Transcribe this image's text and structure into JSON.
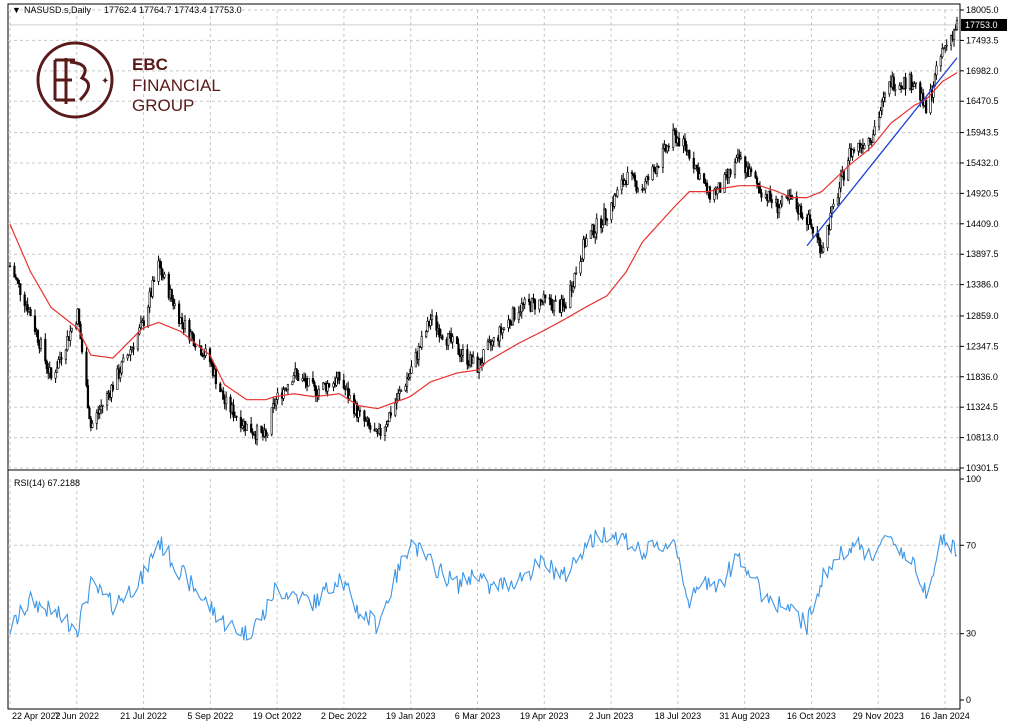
{
  "header": {
    "symbol": "NASUSD.s,Daily",
    "ohlc": "17762.4 17764.7 17743.4 17753.0"
  },
  "logo": {
    "line1": "EBC",
    "line2": "FINANCIAL",
    "line3": "GROUP"
  },
  "price_axis": {
    "ticks": [
      "18005.0",
      "17493.5",
      "16982.0",
      "16470.5",
      "15943.5",
      "15432.0",
      "14920.5",
      "14409.0",
      "13897.5",
      "13386.0",
      "12859.0",
      "12347.5",
      "11836.0",
      "11324.5",
      "10813.0",
      "10301.5"
    ],
    "current_price_label": "17753.0"
  },
  "rsi_panel": {
    "label": "RSI(14) 67.2188",
    "ticks": [
      "100",
      "70",
      "30",
      "0"
    ]
  },
  "x_axis": {
    "ticks": [
      "22 Apr 2022",
      "7 Jun 2022",
      "21 Jul 2022",
      "5 Sep 2022",
      "19 Oct 2022",
      "2 Dec 2022",
      "19 Jan 2023",
      "6 Mar 2023",
      "19 Apr 2023",
      "2 Jun 2023",
      "18 Jul 2023",
      "31 Aug 2023",
      "16 Oct 2023",
      "29 Nov 2023",
      "16 Jan 2024"
    ]
  },
  "colors": {
    "candles": "#000000",
    "moving_average": "#e8322e",
    "trendline": "#1f3fd6",
    "rsi_line": "#3c96e6",
    "grid": "#c8c8c8",
    "logo": "#5a1a1a"
  },
  "chart_data": [
    {
      "type": "line",
      "panel": "price",
      "x_range": [
        "22 Apr 2022",
        "26 Jan 2024"
      ],
      "ylim": [
        10301.5,
        18005.0
      ],
      "grid": true,
      "x": [
        "2022-04-22",
        "2022-05-06",
        "2022-05-20",
        "2022-06-07",
        "2022-06-16",
        "2022-07-01",
        "2022-07-21",
        "2022-08-01",
        "2022-08-16",
        "2022-09-05",
        "2022-09-15",
        "2022-09-30",
        "2022-10-13",
        "2022-10-19",
        "2022-11-01",
        "2022-11-15",
        "2022-12-02",
        "2022-12-15",
        "2022-12-28",
        "2023-01-19",
        "2023-02-02",
        "2023-02-20",
        "2023-03-06",
        "2023-03-13",
        "2023-04-03",
        "2023-04-19",
        "2023-05-04",
        "2023-05-18",
        "2023-06-02",
        "2023-06-15",
        "2023-06-26",
        "2023-07-18",
        "2023-07-28",
        "2023-08-10",
        "2023-08-18",
        "2023-08-31",
        "2023-09-14",
        "2023-09-26",
        "2023-10-05",
        "2023-10-16",
        "2023-10-26",
        "2023-11-14",
        "2023-11-29",
        "2023-12-12",
        "2023-12-28",
        "2024-01-05",
        "2024-01-16",
        "2024-01-26"
      ],
      "series": [
        {
          "kind": "candlestick_close_approx",
          "values": [
            13700,
            12900,
            11800,
            12900,
            11000,
            11700,
            12700,
            13700,
            12800,
            12100,
            11400,
            11000,
            10800,
            11400,
            11900,
            11600,
            11800,
            11200,
            10800,
            11900,
            12800,
            12300,
            12000,
            12300,
            13000,
            13100,
            13000,
            14100,
            14600,
            15200,
            15000,
            15900,
            15600,
            14900,
            15000,
            15500,
            15000,
            14700,
            14800,
            14500,
            14000,
            15600,
            15900,
            16800,
            16800,
            16300,
            17300,
            17753
          ]
        },
        {
          "kind": "moving_average",
          "values": [
            14400,
            13600,
            13000,
            12650,
            12200,
            12150,
            12650,
            12750,
            12600,
            12200,
            11700,
            11450,
            11450,
            11500,
            11550,
            11500,
            11550,
            11350,
            11300,
            11500,
            11750,
            11900,
            11950,
            12100,
            12400,
            12600,
            12800,
            13000,
            13200,
            13600,
            14100,
            14700,
            14950,
            14950,
            15000,
            15050,
            15050,
            14950,
            14850,
            14850,
            14950,
            15400,
            15700,
            16100,
            16400,
            16500,
            16800,
            16950
          ]
        },
        {
          "kind": "trendline",
          "points": [
            [
              "2023-10-16",
              14040
            ],
            [
              "2024-01-26",
              17200
            ]
          ]
        }
      ]
    },
    {
      "type": "line",
      "panel": "rsi",
      "ylim": [
        0,
        100
      ],
      "ylevels": [
        30,
        70
      ],
      "series": [
        {
          "name": "RSI(14)",
          "values": [
            32,
            45,
            40,
            33,
            52,
            43,
            55,
            72,
            58,
            42,
            35,
            30,
            40,
            50,
            48,
            44,
            56,
            40,
            34,
            72,
            62,
            52,
            58,
            50,
            55,
            62,
            56,
            70,
            76,
            73,
            66,
            72,
            44,
            55,
            52,
            66,
            49,
            44,
            40,
            34,
            55,
            71,
            66,
            74,
            60,
            50,
            73,
            67.2188
          ]
        }
      ]
    }
  ]
}
